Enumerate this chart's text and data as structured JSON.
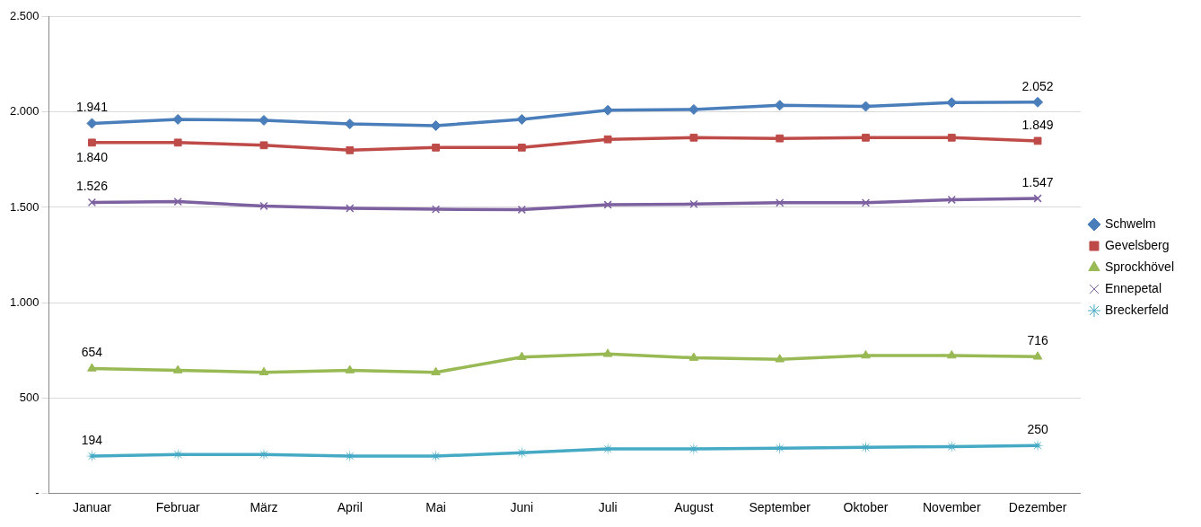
{
  "chart_data": {
    "type": "line",
    "categories": [
      "Januar",
      "Februar",
      "März",
      "April",
      "Mai",
      "Juni",
      "Juli",
      "August",
      "September",
      "Oktober",
      "November",
      "Dezember"
    ],
    "series": [
      {
        "name": "Schwelm",
        "color": "#4a7ebb",
        "marker": "diamond",
        "values": [
          1941,
          1962,
          1957,
          1938,
          1929,
          1962,
          2010,
          2014,
          2036,
          2030,
          2050,
          2052
        ],
        "value_labels": [
          "1.941",
          null,
          null,
          null,
          null,
          null,
          null,
          null,
          null,
          null,
          null,
          "2.052"
        ]
      },
      {
        "name": "Gevelsberg",
        "color": "#be4b48",
        "marker": "square",
        "values": [
          1840,
          1840,
          1826,
          1800,
          1814,
          1814,
          1857,
          1866,
          1862,
          1866,
          1866,
          1849
        ],
        "value_labels": [
          "1.840",
          null,
          null,
          null,
          null,
          null,
          null,
          null,
          null,
          null,
          null,
          "1.849"
        ]
      },
      {
        "name": "Sprockhövel",
        "color": "#98b954",
        "marker": "triangle",
        "values": [
          654,
          644,
          634,
          644,
          634,
          714,
          730,
          710,
          702,
          722,
          722,
          716
        ],
        "value_labels": [
          "654",
          null,
          null,
          null,
          null,
          null,
          null,
          null,
          null,
          null,
          null,
          "716"
        ]
      },
      {
        "name": "Ennepetal",
        "color": "#7d60a0",
        "marker": "cross",
        "values": [
          1526,
          1530,
          1507,
          1495,
          1490,
          1488,
          1514,
          1517,
          1524,
          1524,
          1540,
          1547
        ],
        "value_labels": [
          "1.526",
          null,
          null,
          null,
          null,
          null,
          null,
          null,
          null,
          null,
          null,
          "1.547"
        ]
      },
      {
        "name": "Breckerfeld",
        "color": "#46aac5",
        "marker": "star",
        "values": [
          194,
          203,
          203,
          194,
          194,
          212,
          232,
          232,
          236,
          240,
          244,
          250
        ],
        "value_labels": [
          "194",
          null,
          null,
          null,
          null,
          null,
          null,
          null,
          null,
          null,
          null,
          "250"
        ]
      }
    ],
    "ylim": [
      0,
      2500
    ],
    "yticks": [
      {
        "value": 0,
        "label": "-"
      },
      500,
      {
        "value": 1000,
        "label": "1.000"
      },
      {
        "value": 1500,
        "label": "1.500"
      },
      {
        "value": 2000,
        "label": "2.000"
      },
      {
        "value": 2500,
        "label": "2.500"
      }
    ],
    "grid": "y",
    "legend": "right",
    "line_style": "solid"
  }
}
